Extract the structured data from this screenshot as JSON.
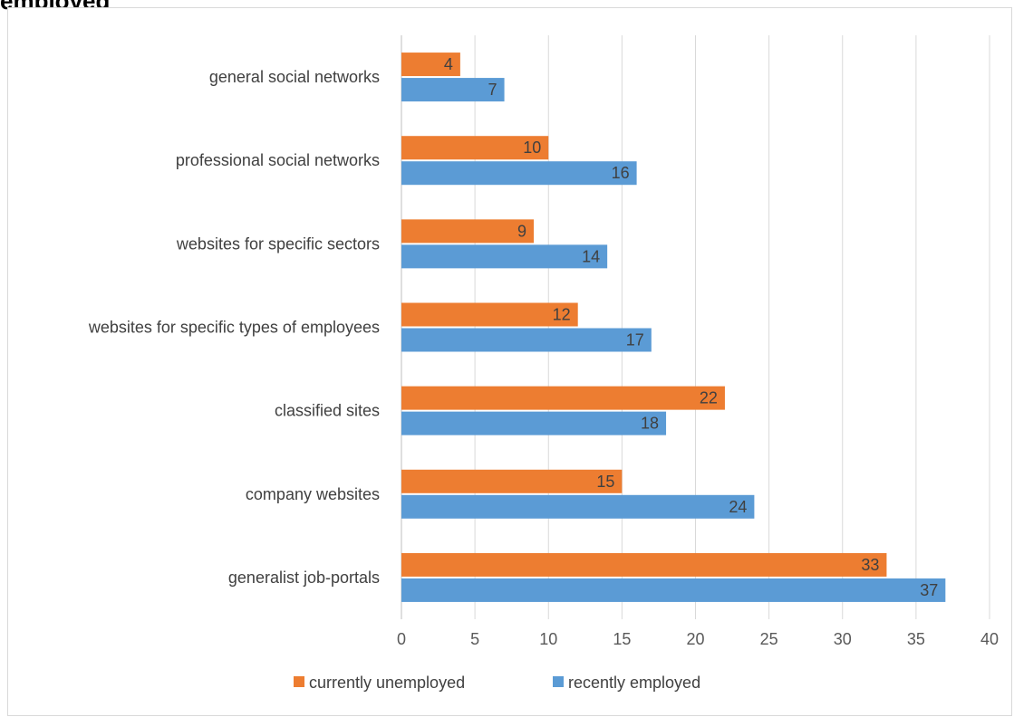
{
  "header": {
    "title": "employed"
  },
  "colors": {
    "unemployed": "#ed7d31",
    "employed": "#5b9bd5",
    "grid": "#d9d9d9",
    "axis": "#bfbfbf"
  },
  "chart_data": {
    "type": "bar",
    "orientation": "horizontal",
    "categories": [
      "general social networks",
      "professional social networks",
      "websites for specific sectors",
      "websites for specific types of employees",
      "classified sites",
      "company websites",
      "generalist job-portals"
    ],
    "series": [
      {
        "name": "currently unemployed",
        "values": [
          4,
          10,
          9,
          12,
          22,
          15,
          33
        ]
      },
      {
        "name": "recently employed",
        "values": [
          7,
          16,
          14,
          17,
          18,
          24,
          37
        ]
      }
    ],
    "xlim": [
      0,
      40
    ],
    "xticks": [
      0,
      5,
      10,
      15,
      20,
      25,
      30,
      35,
      40
    ],
    "grid": true,
    "legend_position": "bottom"
  }
}
